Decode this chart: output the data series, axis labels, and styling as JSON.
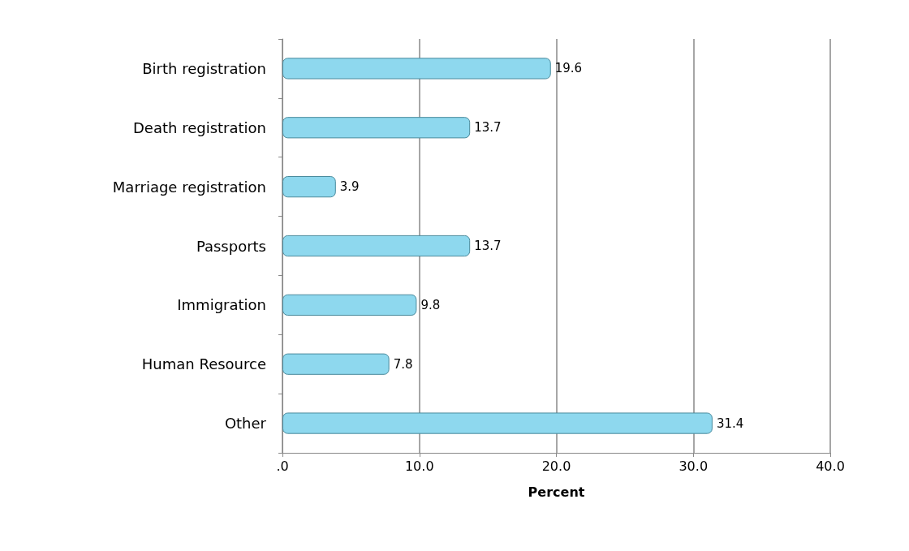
{
  "chart_data": {
    "type": "bar",
    "orientation": "horizontal",
    "categories": [
      "Birth registration",
      "Death registration",
      "Marriage registration",
      "Passports",
      "Immigration",
      "Human Resource",
      "Other"
    ],
    "values": [
      19.6,
      13.7,
      3.9,
      13.7,
      9.8,
      7.8,
      31.4
    ],
    "color": "#8ed8ee",
    "xlabel": "Percent",
    "xlim": [
      0,
      40
    ],
    "xticks": [
      {
        "value": 0,
        "label": ".0"
      },
      {
        "value": 10,
        "label": "10.0"
      },
      {
        "value": 20,
        "label": "20.0"
      },
      {
        "value": 30,
        "label": "30.0"
      },
      {
        "value": 40,
        "label": "40.0"
      }
    ],
    "grid": "x",
    "data_labels": true
  }
}
